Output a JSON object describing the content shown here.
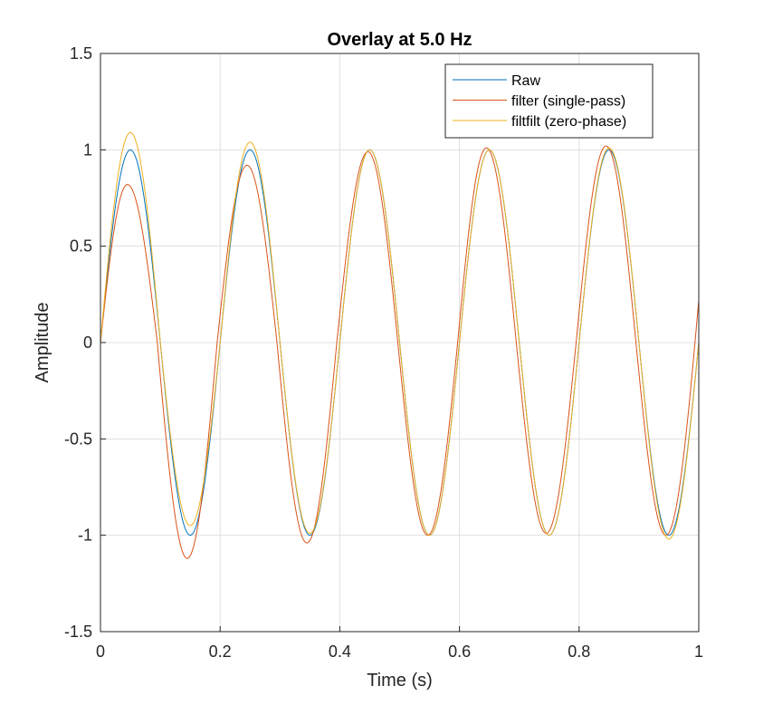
{
  "chart_data": {
    "type": "line",
    "title": "Overlay at 5.0 Hz",
    "xlabel": "Time (s)",
    "ylabel": "Amplitude",
    "xlim": [
      0,
      1
    ],
    "ylim": [
      -1.5,
      1.5
    ],
    "grid": true,
    "legend_position": "top-right",
    "x_ticks": [
      0,
      0.2,
      0.4,
      0.6,
      0.8,
      1
    ],
    "x_tick_labels": [
      "0",
      "0.2",
      "0.4",
      "0.6",
      "0.8",
      "1"
    ],
    "y_ticks": [
      -1.5,
      -1,
      -0.5,
      0,
      0.5,
      1,
      1.5
    ],
    "y_tick_labels": [
      "-1.5",
      "-1",
      "-0.5",
      "0",
      "0.5",
      "1",
      "1.5"
    ],
    "frequency_hz": 5,
    "series": [
      {
        "name": "Raw",
        "color": "#0072BD",
        "x": [
          0,
          0.05,
          0.1,
          0.15,
          0.2,
          0.25,
          0.3,
          0.35,
          0.4,
          0.45,
          0.5,
          0.55,
          0.6,
          0.65,
          0.7,
          0.75,
          0.8,
          0.85,
          0.9,
          0.95,
          1.0
        ],
        "y": [
          0,
          1,
          0,
          -1,
          0,
          1,
          0,
          -1,
          0,
          1,
          0,
          -1,
          0,
          1,
          0,
          -1,
          0,
          1,
          0,
          -1,
          0
        ]
      },
      {
        "name": "filter (single-pass)",
        "color": "#D95319",
        "x": [
          0,
          0.045,
          0.095,
          0.145,
          0.195,
          0.245,
          0.295,
          0.345,
          0.395,
          0.447,
          0.497,
          0.547,
          0.597,
          0.645,
          0.695,
          0.745,
          0.795,
          0.845,
          0.895,
          0.945,
          1.0
        ],
        "y": [
          0,
          0.82,
          0,
          -1.12,
          0,
          0.92,
          0,
          -1.04,
          0,
          0.99,
          0,
          -1.0,
          0,
          1.01,
          0,
          -0.99,
          0,
          1.02,
          0,
          -1.0,
          0.22
        ]
      },
      {
        "name": "filtfilt (zero-phase)",
        "color": "#EDB120",
        "x": [
          0,
          0.05,
          0.1,
          0.15,
          0.2,
          0.25,
          0.3,
          0.35,
          0.4,
          0.45,
          0.5,
          0.55,
          0.6,
          0.65,
          0.7,
          0.75,
          0.8,
          0.85,
          0.9,
          0.95,
          1.0
        ],
        "y": [
          0,
          1.09,
          0,
          -0.95,
          0,
          1.04,
          0,
          -0.99,
          0,
          1.0,
          0,
          -1.0,
          0,
          1.0,
          0,
          -1.0,
          0,
          1.01,
          0,
          -1.02,
          0
        ]
      }
    ]
  }
}
